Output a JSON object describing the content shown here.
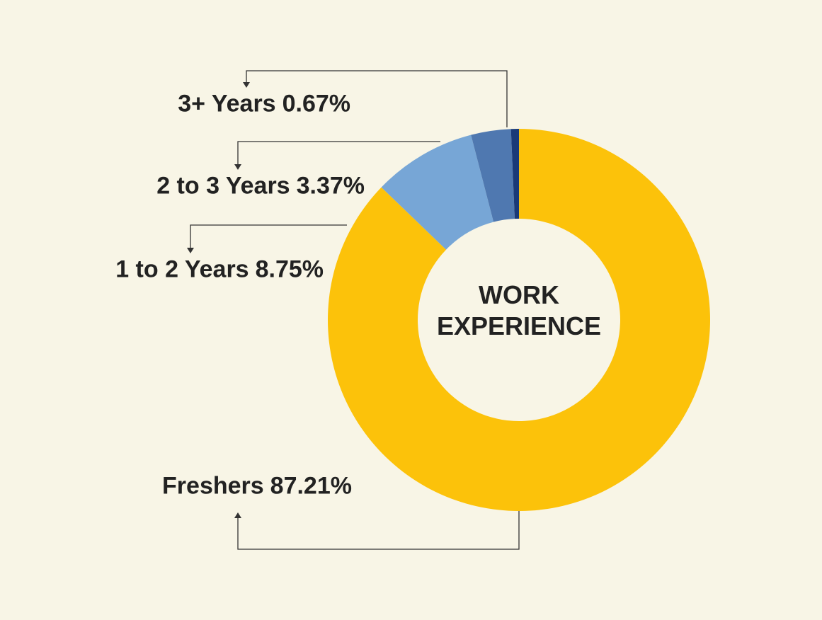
{
  "chart_data": {
    "type": "donut",
    "title": "WORK EXPERIENCE",
    "categories": [
      "Freshers",
      "1 to 2 Years",
      "2 to 3 Years",
      "3+ Years"
    ],
    "values": [
      87.21,
      8.75,
      3.37,
      0.67
    ],
    "value_labels": [
      "87.21%",
      "8.75%",
      "3.37%",
      "0.67%"
    ],
    "colors": [
      "#fcc20a",
      "#77a6d6",
      "#4f78b0",
      "#1a3a78"
    ]
  }
}
